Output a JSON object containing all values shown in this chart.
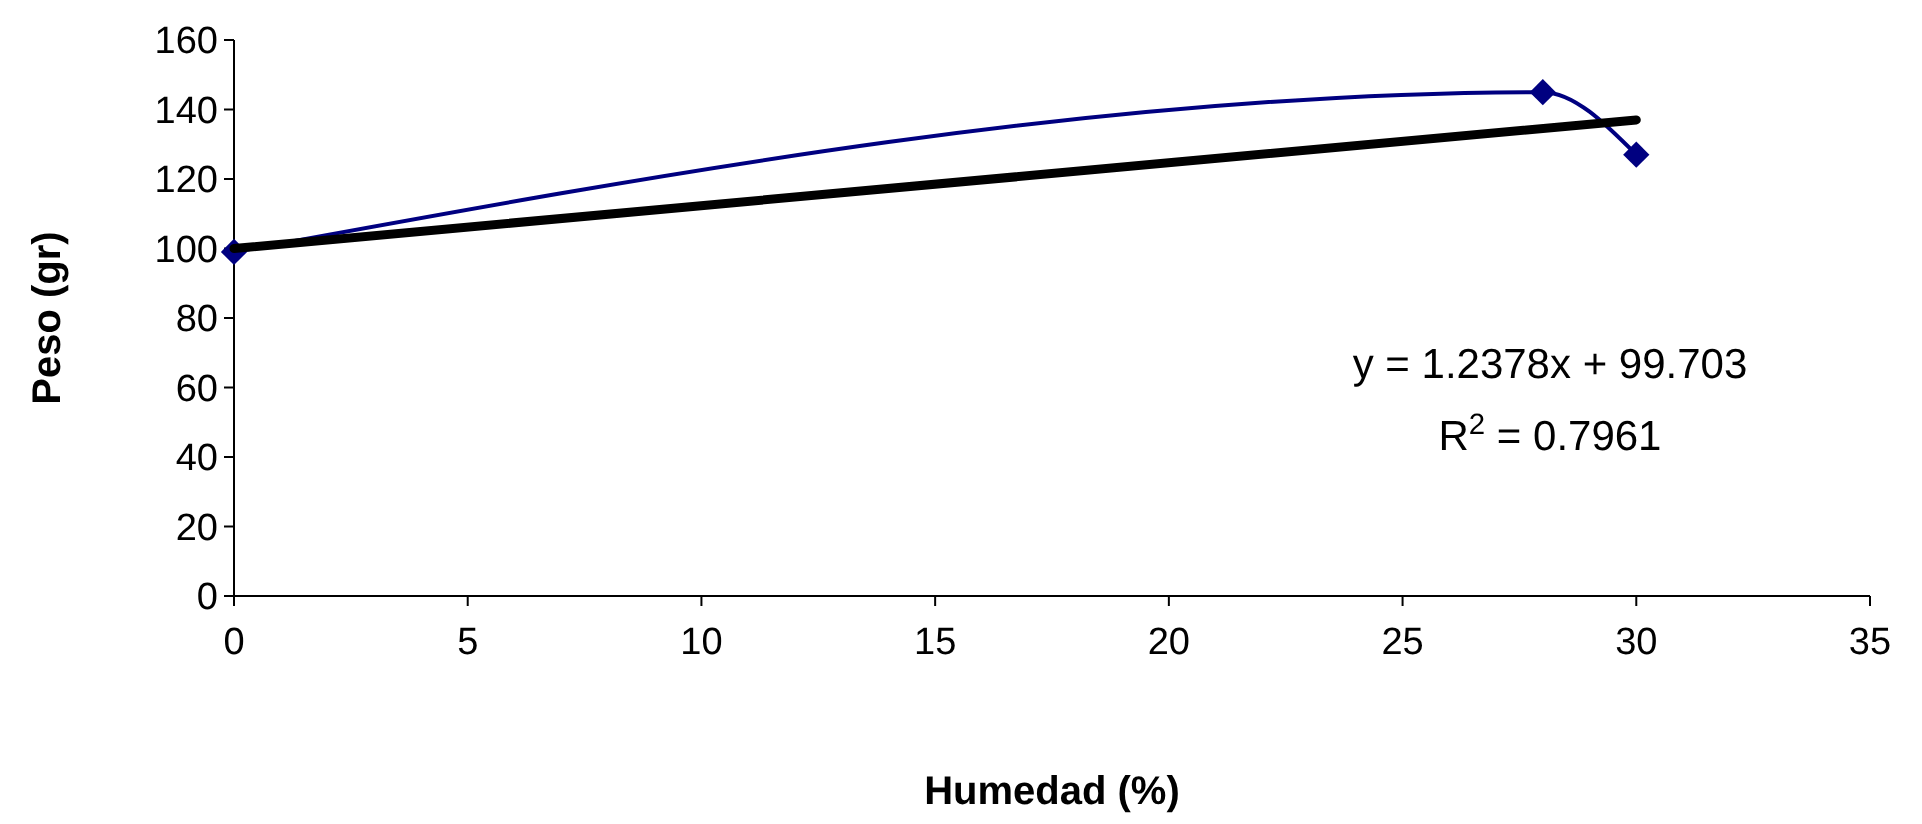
{
  "chart_data": {
    "type": "line",
    "xlabel": "Humedad (%)",
    "ylabel": "Peso (gr)",
    "xlim": [
      0,
      35
    ],
    "xticks": [
      0,
      5,
      10,
      15,
      20,
      25,
      30,
      35
    ],
    "ylim": [
      0,
      160
    ],
    "yticks": [
      0,
      20,
      40,
      60,
      80,
      100,
      120,
      140,
      160
    ],
    "marker": "diamond",
    "series": [
      {
        "color": "#000080",
        "x": [
          0,
          28,
          30
        ],
        "values": [
          99,
          145,
          127
        ]
      },
      {
        "type": "line",
        "color": "#000000",
        "x": [
          0,
          30
        ],
        "values": [
          100,
          137
        ],
        "marker": "none"
      }
    ],
    "annotations": [
      "y = 1.2378x + 99.703",
      "R$^{2}$ = 0.7961"
    ]
  }
}
